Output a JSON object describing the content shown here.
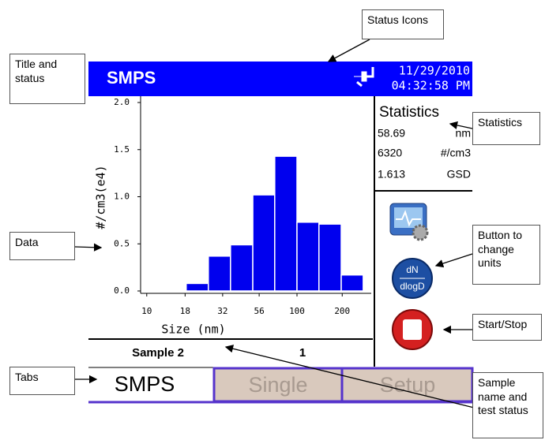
{
  "screen": {
    "title": "SMPS",
    "date": "11/29/2010",
    "time": "04:32:58 PM",
    "statistics": {
      "heading": "Statistics",
      "rows": [
        [
          "58.69",
          "nm"
        ],
        [
          "6320",
          "#/cm3"
        ],
        [
          "1.613",
          "GSD"
        ]
      ]
    },
    "buttons": {
      "units_top": "dN",
      "units_bottom": "dlogD"
    },
    "sample": {
      "name": "Sample 2",
      "status": "1"
    },
    "tabs": [
      "SMPS",
      "Single",
      "Setup"
    ]
  },
  "chart_data": {
    "type": "histogram",
    "x_label": "Size (nm)",
    "y_label": "#/cm3(e4)",
    "bins": [
      9.4,
      18.3,
      25.7,
      36.1,
      50.8,
      71.1,
      100,
      140,
      197,
      276
    ],
    "values": [
      0.01,
      0.08,
      0.37,
      0.49,
      1.02,
      1.43,
      0.73,
      0.71,
      0.17
    ],
    "color": "#0000ee",
    "log_x": true,
    "xlim": [
      9.1,
      312
    ],
    "xticks": [
      10,
      18,
      32,
      56,
      100,
      200
    ],
    "ylim": [
      0,
      2
    ],
    "yticks": [
      {
        "value": 0,
        "label": "0.0"
      },
      0.5,
      {
        "value": 1,
        "label": "1.0"
      },
      1.5,
      {
        "value": 2,
        "label": "2.0"
      }
    ]
  },
  "annotations": [
    "Status Icons",
    "Title and status",
    "Statistics",
    "Data",
    "Button to change units",
    "Start/Stop",
    "Tabs",
    "Sample name and test status"
  ]
}
